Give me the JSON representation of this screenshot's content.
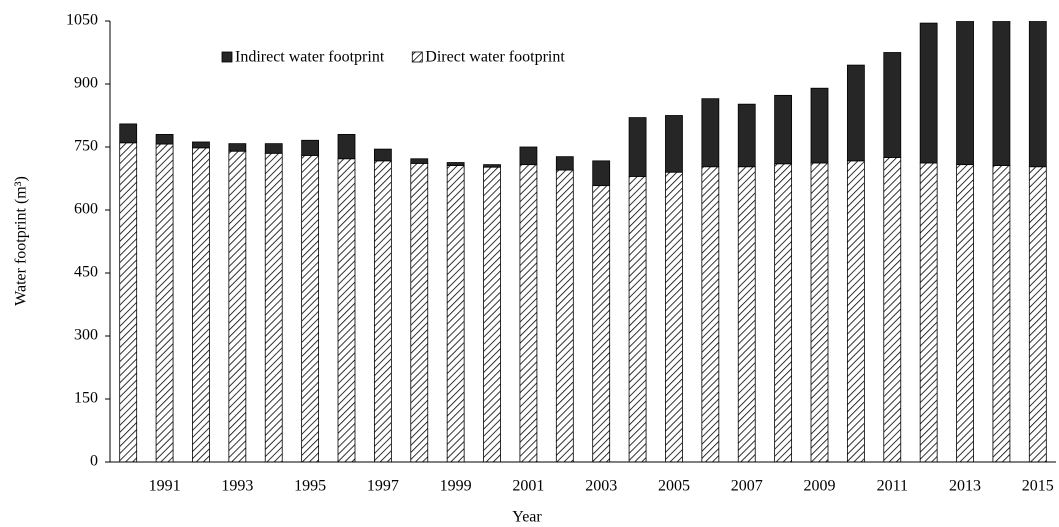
{
  "chart_data": {
    "type": "stacked-bar",
    "x_label": "Year",
    "y_label": "Water footprint (m³)",
    "categories": [
      null,
      "1991",
      null,
      "1993",
      null,
      "1995",
      null,
      "1997",
      null,
      "1999",
      null,
      "2001",
      null,
      "2003",
      null,
      "2005",
      null,
      "2007",
      null,
      "2009",
      null,
      "2011",
      null,
      "2013",
      null,
      "2015"
    ],
    "series": [
      {
        "name": "Direct water footprint",
        "color": "hatched",
        "values": [
          760,
          757,
          748,
          740,
          735,
          730,
          722,
          717,
          711,
          706,
          702,
          708,
          695,
          658,
          680,
          690,
          703,
          703,
          710,
          712,
          717,
          725,
          712,
          708,
          706,
          703
        ]
      },
      {
        "name": "Indirect water footprint",
        "color": "#262626",
        "values": [
          45,
          23,
          14,
          18,
          23,
          36,
          58,
          28,
          11,
          7,
          6,
          42,
          32,
          59,
          140,
          135,
          162,
          149,
          163,
          178,
          228,
          250,
          333,
          362,
          382,
          405
        ]
      }
    ],
    "ylim": [
      0,
      1050
    ],
    "yticks": [
      0,
      150,
      300,
      450,
      600,
      750,
      900,
      1050
    ],
    "legend": "top"
  }
}
